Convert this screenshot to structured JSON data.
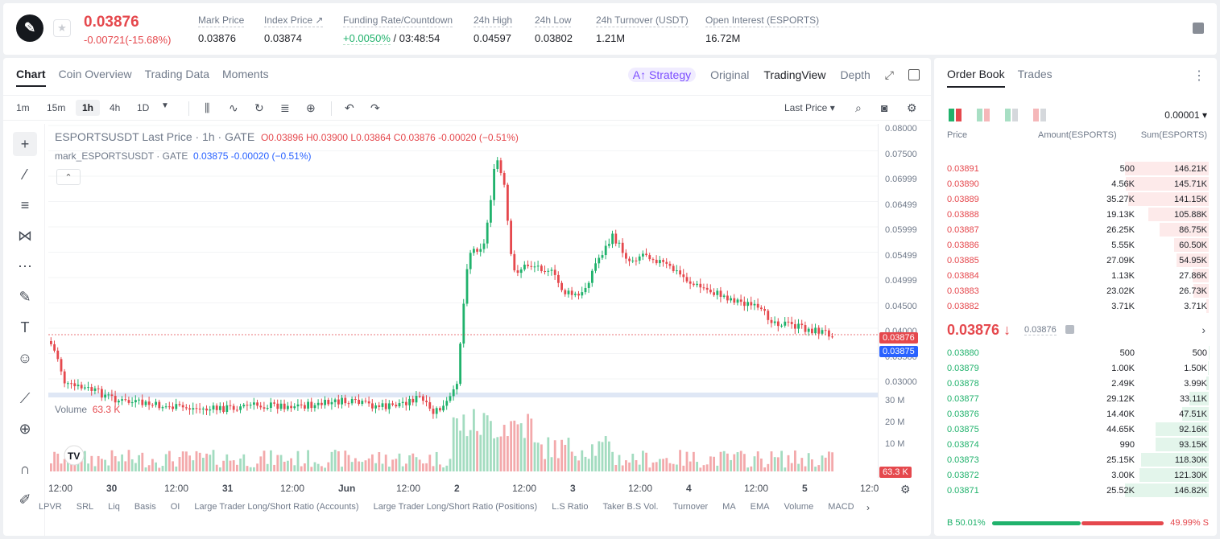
{
  "header": {
    "price": "0.03876",
    "change": "-0.00721(-15.68%)",
    "stats": [
      {
        "label": "Mark Price",
        "value": "0.03876"
      },
      {
        "label": "Index Price ↗",
        "value": "0.03874"
      },
      {
        "label": "Funding Rate/Countdown",
        "value_green": "+0.0050%",
        "value": " / 03:48:54"
      },
      {
        "label": "24h High",
        "value": "0.04597"
      },
      {
        "label": "24h Low",
        "value": "0.03802"
      },
      {
        "label": "24h Turnover (USDT)",
        "value": "1.21M"
      },
      {
        "label": "Open Interest (ESPORTS)",
        "value": "16.72M"
      }
    ]
  },
  "chart_tabs": [
    "Chart",
    "Coin Overview",
    "Trading Data",
    "Moments"
  ],
  "view_tabs": {
    "strategy": "A↑ Strategy",
    "original": "Original",
    "tradingview": "TradingView",
    "depth": "Depth"
  },
  "timeframes": [
    "1m",
    "15m",
    "1h",
    "4h",
    "1D"
  ],
  "toolbar": {
    "last_price": "Last Price"
  },
  "legend": {
    "main": "ESPORTSUSDT Last Price · 1h · GATE",
    "ohlc": "O0.03896  H0.03900  L0.03864  C0.03876  -0.00020 (−0.51%)",
    "mark": "mark_ESPORTSUSDT · GATE",
    "mark_vals": "0.03875  -0.00020 (−0.51%)",
    "volume_label": "Volume",
    "volume_val": "63.3 K"
  },
  "price_axis": [
    "0.08000",
    "0.07500",
    "0.06999",
    "0.06499",
    "0.05999",
    "0.05499",
    "0.04999",
    "0.04500",
    "0.04000",
    "0.03500",
    "0.03000"
  ],
  "price_tags": {
    "last": "0.03876",
    "mark": "0.03875",
    "vol": "63.3 K"
  },
  "volume_axis": [
    "30 M",
    "20 M",
    "10 M"
  ],
  "x_axis": [
    "12:00",
    "30",
    "12:00",
    "31",
    "12:00",
    "Jun",
    "12:00",
    "2",
    "12:00",
    "3",
    "12:00",
    "4",
    "12:00",
    "5",
    "12:0"
  ],
  "indicators": [
    "LPVR",
    "SRL",
    "Liq",
    "Basis",
    "OI",
    "Large Trader Long/Short Ratio (Accounts)",
    "Large Trader Long/Short Ratio (Positions)",
    "L.S Ratio",
    "Taker B.S Vol.",
    "Turnover",
    "MA",
    "EMA",
    "Volume",
    "MACD"
  ],
  "orderbook": {
    "tabs": [
      "Order Book",
      "Trades"
    ],
    "tick": "0.00001",
    "headers": {
      "price": "Price",
      "amount": "Amount(ESPORTS)",
      "sum": "Sum(ESPORTS)"
    },
    "asks": [
      {
        "price": "0.03891",
        "amount": "500",
        "sum": "146.21K",
        "depth": 1.0
      },
      {
        "price": "0.03890",
        "amount": "4.56K",
        "sum": "145.71K",
        "depth": 0.99
      },
      {
        "price": "0.03889",
        "amount": "35.27K",
        "sum": "141.15K",
        "depth": 0.96
      },
      {
        "price": "0.03888",
        "amount": "19.13K",
        "sum": "105.88K",
        "depth": 0.72
      },
      {
        "price": "0.03887",
        "amount": "26.25K",
        "sum": "86.75K",
        "depth": 0.59
      },
      {
        "price": "0.03886",
        "amount": "5.55K",
        "sum": "60.50K",
        "depth": 0.41
      },
      {
        "price": "0.03885",
        "amount": "27.09K",
        "sum": "54.95K",
        "depth": 0.38
      },
      {
        "price": "0.03884",
        "amount": "1.13K",
        "sum": "27.86K",
        "depth": 0.19
      },
      {
        "price": "0.03883",
        "amount": "23.02K",
        "sum": "26.73K",
        "depth": 0.18
      },
      {
        "price": "0.03882",
        "amount": "3.71K",
        "sum": "3.71K",
        "depth": 0.03
      }
    ],
    "mid_price": "0.03876 ↓",
    "mid_mark": "0.03876",
    "bids": [
      {
        "price": "0.03880",
        "amount": "500",
        "sum": "500",
        "depth": 0.003
      },
      {
        "price": "0.03879",
        "amount": "1.00K",
        "sum": "1.50K",
        "depth": 0.01
      },
      {
        "price": "0.03878",
        "amount": "2.49K",
        "sum": "3.99K",
        "depth": 0.03
      },
      {
        "price": "0.03877",
        "amount": "29.12K",
        "sum": "33.11K",
        "depth": 0.23
      },
      {
        "price": "0.03876",
        "amount": "14.40K",
        "sum": "47.51K",
        "depth": 0.32
      },
      {
        "price": "0.03875",
        "amount": "44.65K",
        "sum": "92.16K",
        "depth": 0.63
      },
      {
        "price": "0.03874",
        "amount": "990",
        "sum": "93.15K",
        "depth": 0.63
      },
      {
        "price": "0.03873",
        "amount": "25.15K",
        "sum": "118.30K",
        "depth": 0.81
      },
      {
        "price": "0.03872",
        "amount": "3.00K",
        "sum": "121.30K",
        "depth": 0.83
      },
      {
        "price": "0.03871",
        "amount": "25.52K",
        "sum": "146.82K",
        "depth": 1.0
      }
    ],
    "buy_ratio": "B 50.01%",
    "sell_ratio": "49.99% S"
  },
  "colors": {
    "up": "#20b26c",
    "down": "#e5484d",
    "mark": "#2962ff"
  }
}
